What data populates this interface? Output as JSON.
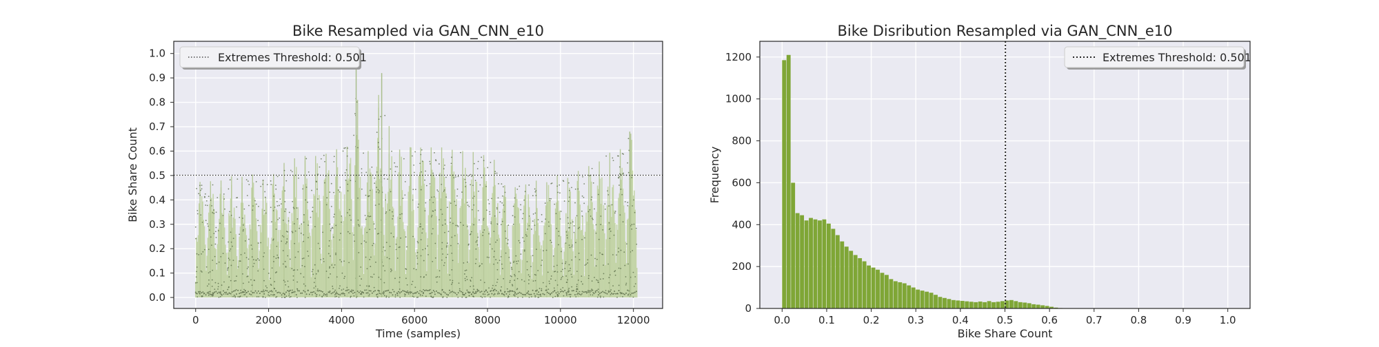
{
  "colors": {
    "figure_bg": "#ffffff",
    "axes_bg": "#eaeaf2",
    "grid": "#ffffff",
    "spine": "#262626",
    "text": "#262626",
    "ts_fill": "#c2d4a5",
    "ts_points": "#5a6b49",
    "hist_bar": "#7fa636",
    "threshold": "#262626"
  },
  "chart_data": [
    {
      "type": "line",
      "title": "Bike Resampled via GAN_CNN_e10",
      "xlabel": "Time (samples)",
      "ylabel": "Bike Share Count",
      "xlim": [
        -600,
        12800
      ],
      "ylim": [
        -0.045,
        1.05
      ],
      "xticks": [
        0,
        2000,
        4000,
        6000,
        8000,
        10000,
        12000
      ],
      "yticks": [
        0.0,
        0.1,
        0.2,
        0.3,
        0.4,
        0.5,
        0.6,
        0.7,
        0.8,
        0.9,
        1.0
      ],
      "grid": true,
      "legend": {
        "position": "upper-left",
        "entries": [
          "Extremes Threshold: 0.501"
        ]
      },
      "threshold": {
        "value": 0.501,
        "label": "Extremes Threshold: 0.501",
        "style": "dotted"
      },
      "series": [
        {
          "description": "daily envelope of resampled series (approximate daily maxima)",
          "x": [
            0,
            300,
            600,
            900,
            1200,
            1500,
            1800,
            2100,
            2400,
            2700,
            3000,
            3300,
            3600,
            3900,
            4200,
            4400,
            4500,
            4800,
            5100,
            5400,
            5700,
            6000,
            6300,
            6600,
            6900,
            7200,
            7500,
            7800,
            8100,
            8400,
            8600,
            8700,
            9000,
            9300,
            9600,
            9900,
            10200,
            10500,
            10800,
            11100,
            11400,
            11700,
            11900,
            12000,
            12100
          ],
          "max": [
            0.47,
            0.48,
            0.47,
            0.5,
            0.49,
            0.51,
            0.48,
            0.5,
            0.55,
            0.57,
            0.58,
            0.58,
            0.59,
            0.61,
            0.62,
            0.95,
            0.6,
            0.6,
            0.92,
            0.6,
            0.61,
            0.62,
            0.61,
            0.62,
            0.61,
            0.6,
            0.6,
            0.59,
            0.57,
            0.55,
            0.3,
            0.45,
            0.46,
            0.48,
            0.47,
            0.5,
            0.49,
            0.52,
            0.54,
            0.56,
            0.6,
            0.61,
            0.68,
            0.65,
            0.6
          ],
          "min": [
            0.0,
            0.0,
            0.0,
            0.0,
            0.0,
            0.0,
            0.0,
            0.0,
            0.0,
            0.0,
            0.0,
            0.0,
            0.0,
            0.0,
            0.0,
            0.0,
            0.0,
            0.0,
            0.0,
            0.0,
            0.0,
            0.0,
            0.0,
            0.0,
            0.0,
            0.0,
            0.0,
            0.0,
            0.0,
            0.0,
            0.0,
            0.0,
            0.0,
            0.0,
            0.0,
            0.0,
            0.0,
            0.0,
            0.0,
            0.0,
            0.0,
            0.0,
            0.0,
            0.0,
            0.0
          ]
        }
      ]
    },
    {
      "type": "bar",
      "title": "Bike Disribution Resampled via GAN_CNN_e10",
      "xlabel": "Bike Share Count",
      "ylabel": "Frequency",
      "xlim": [
        -0.05,
        1.05
      ],
      "ylim": [
        0,
        1275
      ],
      "xticks": [
        0.0,
        0.1,
        0.2,
        0.3,
        0.4,
        0.5,
        0.6,
        0.7,
        0.8,
        0.9,
        1.0
      ],
      "yticks": [
        0,
        200,
        400,
        600,
        800,
        1000,
        1200
      ],
      "grid": true,
      "legend": {
        "position": "upper-right",
        "entries": [
          "Extremes Threshold: 0.501"
        ]
      },
      "threshold": {
        "value": 0.501,
        "label": "Extremes Threshold: 0.501",
        "style": "dotted"
      },
      "bin_start": 0.0,
      "bin_width": 0.01,
      "values": [
        1185,
        1210,
        600,
        455,
        445,
        420,
        432,
        425,
        420,
        425,
        405,
        380,
        350,
        320,
        295,
        275,
        255,
        240,
        225,
        205,
        195,
        185,
        170,
        160,
        140,
        130,
        125,
        120,
        110,
        100,
        90,
        85,
        80,
        75,
        65,
        55,
        50,
        45,
        40,
        38,
        36,
        34,
        32,
        30,
        33,
        30,
        35,
        30,
        32,
        35,
        38,
        40,
        35,
        30,
        28,
        25,
        20,
        18,
        15,
        12,
        8,
        4,
        2,
        0
      ]
    }
  ]
}
